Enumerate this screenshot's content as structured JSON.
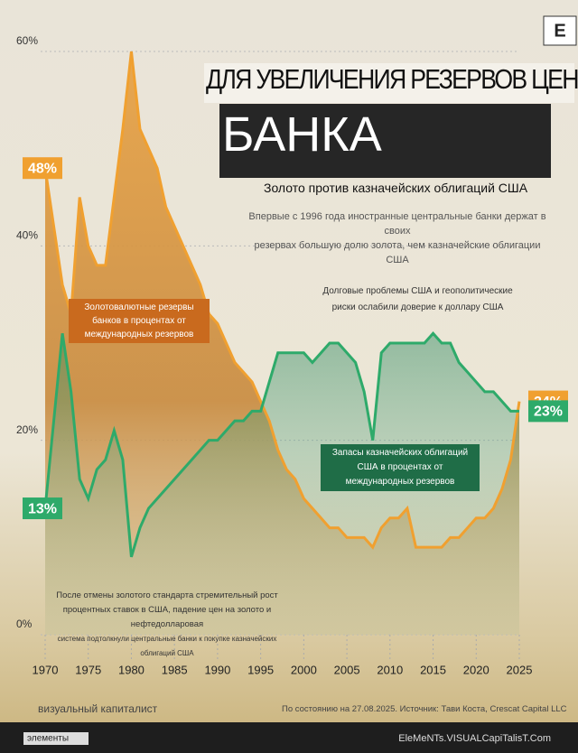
{
  "brand": {
    "logo": "E",
    "bottom_left": "элементы",
    "bottom_right": "ElеMeNTs.VISUALCapiTalisT.Com"
  },
  "chart_data": {
    "type": "line",
    "title": [
      "ДЛЯ УВЕЛИЧЕНИЯ РЕЗЕРВОВ ЦЕНТРАЛЬНОГО",
      "БАНКА"
    ],
    "subtitle": "Золото против казначейских облигаций США",
    "description": [
      "Впервые с 1996 года иностранные центральные банки держат в своих",
      "резервах большую долю золота, чем казначейские облигации США"
    ],
    "annotations": [
      [
        "Долговые проблемы США и геополитические",
        "риски ослабили доверие к доллару США"
      ],
      [
        "После отмены золотого стандарта стремительный рост",
        "процентных ставок в США, падение цен на золото и нефтедолларовая",
        "система подтолкнули центральные банки к покупке казначейских облигаций США"
      ]
    ],
    "x": [
      1970,
      1971,
      1972,
      1973,
      1974,
      1975,
      1976,
      1977,
      1978,
      1979,
      1980,
      1981,
      1982,
      1983,
      1984,
      1985,
      1986,
      1987,
      1988,
      1989,
      1990,
      1991,
      1992,
      1993,
      1994,
      1995,
      1996,
      1997,
      1998,
      1999,
      2000,
      2001,
      2002,
      2003,
      2004,
      2005,
      2006,
      2007,
      2008,
      2009,
      2010,
      2011,
      2012,
      2013,
      2014,
      2015,
      2016,
      2017,
      2018,
      2019,
      2020,
      2021,
      2022,
      2023,
      2024,
      2025
    ],
    "series": [
      {
        "name": "Золотовалютные резервы банков в процентах от международных резервов",
        "color": "#f0a030",
        "values": [
          48,
          42,
          36,
          33,
          45,
          40,
          38,
          38,
          45,
          52,
          60,
          52,
          50,
          48,
          44,
          42,
          40,
          38,
          36,
          33,
          32,
          30,
          28,
          27,
          26,
          24,
          22,
          19,
          17,
          16,
          14,
          13,
          12,
          11,
          11,
          10,
          10,
          10,
          9,
          11,
          12,
          12,
          13,
          9,
          9,
          9,
          9,
          10,
          10,
          11,
          12,
          12,
          13,
          15,
          18,
          24
        ],
        "value_labels": [
          "48%",
          null,
          null,
          null,
          null,
          null,
          null,
          null,
          null,
          null,
          null,
          null,
          null,
          null,
          null,
          null,
          null,
          null,
          null,
          null,
          null,
          null,
          null,
          null,
          null,
          null,
          null,
          null,
          null,
          null,
          null,
          null,
          null,
          null,
          null,
          null,
          null,
          null,
          null,
          null,
          null,
          null,
          null,
          null,
          null,
          null,
          null,
          null,
          null,
          null,
          null,
          null,
          null,
          null,
          null,
          "24%"
        ]
      },
      {
        "name": "Запасы казначейских облигаций США в процентах от международных резервов",
        "color": "#2eaa6a",
        "values": [
          13,
          22,
          31,
          25,
          16,
          14,
          17,
          18,
          21,
          18,
          8,
          11,
          13,
          14,
          15,
          16,
          17,
          18,
          19,
          20,
          20,
          21,
          22,
          22,
          23,
          23,
          26,
          29,
          29,
          29,
          29,
          28,
          29,
          30,
          30,
          29,
          28,
          25,
          20,
          29,
          30,
          30,
          30,
          30,
          30,
          31,
          30,
          30,
          28,
          27,
          26,
          25,
          25,
          24,
          23,
          23
        ],
        "value_labels": [
          "13%",
          null,
          null,
          null,
          null,
          null,
          null,
          null,
          null,
          null,
          null,
          null,
          null,
          null,
          null,
          null,
          null,
          null,
          null,
          null,
          null,
          null,
          null,
          null,
          null,
          null,
          null,
          null,
          null,
          null,
          null,
          null,
          null,
          null,
          null,
          null,
          null,
          null,
          null,
          null,
          null,
          null,
          null,
          null,
          null,
          null,
          null,
          null,
          null,
          null,
          null,
          null,
          null,
          null,
          null,
          "23%"
        ]
      }
    ],
    "xlim": [
      1970,
      2025
    ],
    "xticks": [
      1970,
      1975,
      1980,
      1985,
      1990,
      1995,
      2000,
      2005,
      2010,
      2015,
      2020,
      2025
    ],
    "ylim": [
      0,
      60
    ],
    "yticks": [
      {
        "value": 0,
        "label": "0%"
      },
      {
        "value": 20,
        "label": "20%"
      },
      {
        "value": 40,
        "label": "40%"
      },
      {
        "value": 60,
        "label": "60%"
      }
    ],
    "grid": true,
    "logo_text": "визуальный капиталист",
    "source": "По состоянию на 27.08.2025. Источник: Тави Коста, Crescat Capital LLC"
  }
}
